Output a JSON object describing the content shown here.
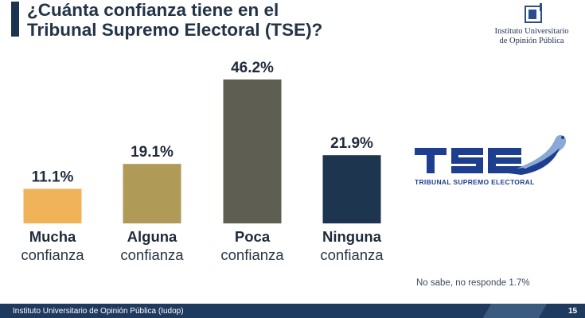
{
  "header": {
    "title_line1": "¿Cuánta confianza tiene en el",
    "title_line2": "Tribunal Supremo Electoral (TSE)?"
  },
  "iudop_logo": {
    "icon": "iudop-logo-icon",
    "line1": "Instituto Universitario",
    "line2": "de Opinión Pública"
  },
  "tse_logo": {
    "icon": "tse-logo-icon",
    "name": "TRIBUNAL SUPREMO ELECTORAL"
  },
  "chart_data": {
    "type": "bar",
    "categories": [
      [
        "Mucha",
        "confianza"
      ],
      [
        "Alguna",
        "confianza"
      ],
      [
        "Poca",
        "confianza"
      ],
      [
        "Ninguna",
        "confianza"
      ]
    ],
    "values": [
      11.1,
      19.1,
      46.2,
      21.9
    ],
    "value_labels": [
      "11.1%",
      "19.1%",
      "46.2%",
      "21.9%"
    ],
    "colors": [
      "#f0b35a",
      "#b09a58",
      "#5f5e52",
      "#1e3550"
    ],
    "unit": "%",
    "ylim": [
      0,
      50
    ],
    "grid": false,
    "legend": "none"
  },
  "note": "No sabe, no responde  1.7%",
  "footer": {
    "text": "Instituto Universitario de Opinión Pública (Iudop)",
    "page": "15",
    "colors": {
      "bar": "#1f3a5f"
    }
  }
}
